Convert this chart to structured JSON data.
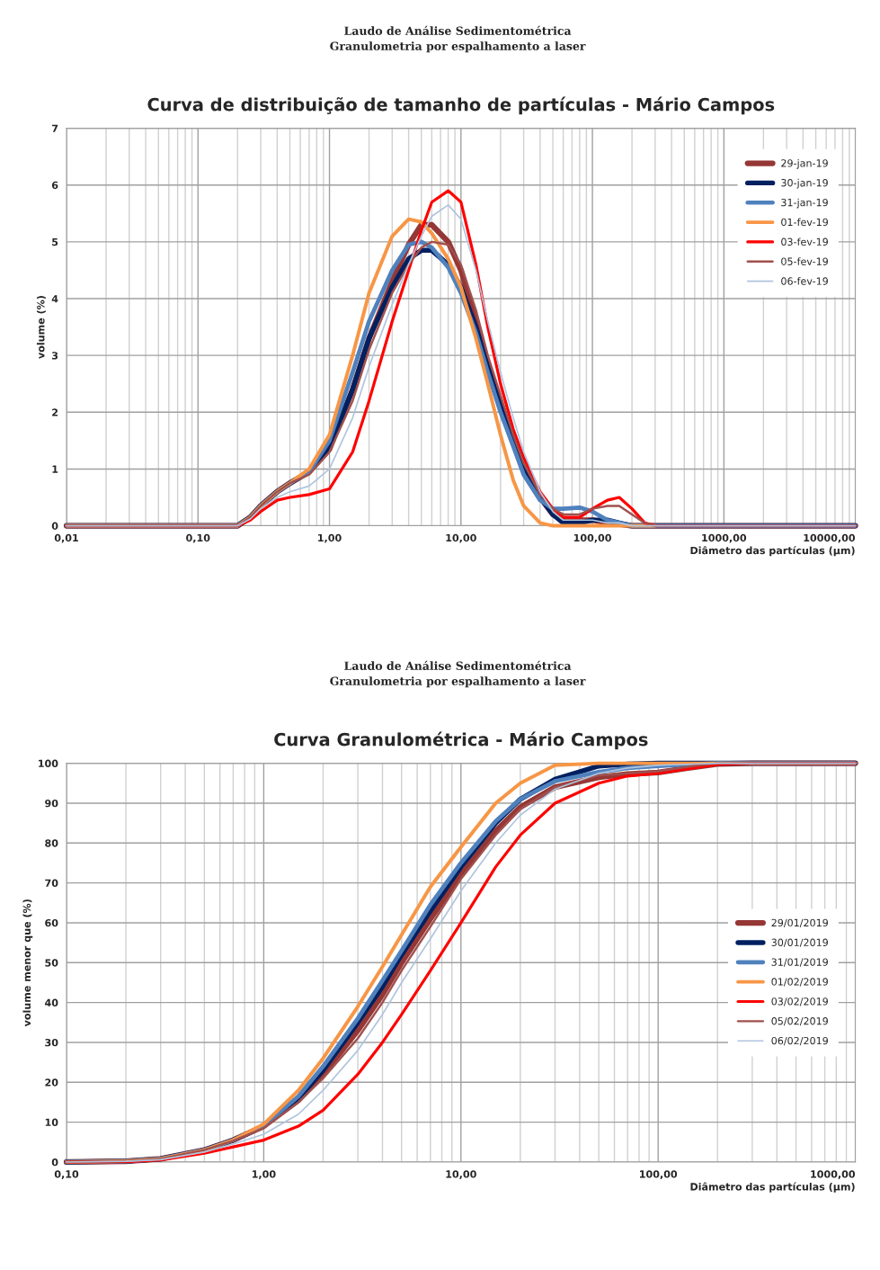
{
  "chart_data": [
    {
      "type": "line",
      "title": "Curva de distribuição de tamanho de partículas - Mário Campos",
      "annotations": [
        "Laudo de Análise Sedimentométrica",
        "Granulometria por espalhamento a laser"
      ],
      "xlabel": "Diâmetro das partículas (µm)",
      "ylabel": "volume (%)",
      "log": "x",
      "grid": true,
      "legend": "top right",
      "line_style": "solid",
      "marker": "none",
      "xlim": [
        0.01,
        10000
      ],
      "xticks": [
        {
          "value": 0.01,
          "label": "0,01"
        },
        {
          "value": 0.1,
          "label": "0,10"
        },
        {
          "value": 1,
          "label": "1,00"
        },
        {
          "value": 10,
          "label": "10,00"
        },
        {
          "value": 100,
          "label": "100,00"
        },
        {
          "value": 1000,
          "label": "1000,00"
        },
        {
          "value": 10000,
          "label": "10000,00"
        }
      ],
      "ylim": [
        0,
        7
      ],
      "yticks": [
        0,
        1,
        2,
        3,
        4,
        5,
        6,
        7
      ],
      "x": [
        0.01,
        0.1,
        0.2,
        0.25,
        0.3,
        0.4,
        0.5,
        0.7,
        1,
        1.5,
        2,
        3,
        4,
        5,
        6,
        8,
        10,
        13,
        16,
        20,
        25,
        30,
        40,
        50,
        60,
        80,
        100,
        130,
        160,
        200,
        250,
        300,
        1000,
        10000
      ],
      "series": [
        {
          "name": "29-jan-19",
          "color": "#953735",
          "values": [
            0,
            0,
            0,
            0.15,
            0.35,
            0.6,
            0.75,
            0.95,
            1.35,
            2.4,
            3.3,
            4.3,
            4.95,
            5.3,
            5.3,
            5.0,
            4.5,
            3.6,
            2.8,
            2.1,
            1.5,
            1.0,
            0.5,
            0.2,
            0.1,
            0.1,
            0.1,
            0.05,
            0.03,
            0,
            0,
            0,
            0,
            0
          ]
        },
        {
          "name": "30-jan-19",
          "color": "#002060",
          "values": [
            0,
            0,
            0,
            0.15,
            0.35,
            0.6,
            0.75,
            0.95,
            1.4,
            2.4,
            3.3,
            4.2,
            4.7,
            4.85,
            4.85,
            4.6,
            4.2,
            3.5,
            2.8,
            2.1,
            1.5,
            1.0,
            0.5,
            0.2,
            0.05,
            0.05,
            0.1,
            0.1,
            0.05,
            0,
            0,
            0,
            0,
            0
          ]
        },
        {
          "name": "31-jan-19",
          "color": "#4f81bd",
          "values": [
            0,
            0,
            0,
            0.15,
            0.35,
            0.6,
            0.75,
            0.95,
            1.5,
            2.7,
            3.6,
            4.5,
            4.95,
            5.0,
            4.9,
            4.55,
            4.1,
            3.4,
            2.7,
            2.0,
            1.4,
            0.9,
            0.45,
            0.3,
            0.3,
            0.32,
            0.25,
            0.1,
            0.05,
            0,
            0,
            0,
            0,
            0
          ]
        },
        {
          "name": "01-fev-19",
          "color": "#f79646",
          "values": [
            0,
            0,
            0,
            0.15,
            0.35,
            0.6,
            0.75,
            1.0,
            1.6,
            3.0,
            4.1,
            5.1,
            5.4,
            5.35,
            5.15,
            4.7,
            4.2,
            3.3,
            2.5,
            1.6,
            0.8,
            0.35,
            0.05,
            0,
            0,
            0,
            0,
            0,
            0,
            0,
            0,
            0,
            null,
            null
          ]
        },
        {
          "name": "03-fev-19",
          "color": "#ff0000",
          "values": [
            0,
            0,
            0,
            0.1,
            0.25,
            0.45,
            0.5,
            0.55,
            0.65,
            1.3,
            2.2,
            3.6,
            4.5,
            5.2,
            5.7,
            5.9,
            5.7,
            4.6,
            3.5,
            2.5,
            1.7,
            1.2,
            0.6,
            0.3,
            0.15,
            0.15,
            0.3,
            0.45,
            0.5,
            0.3,
            0.05,
            0,
            0,
            0
          ]
        },
        {
          "name": "05-fev-19",
          "color": "#a0504e",
          "values": [
            0,
            0,
            0,
            0.15,
            0.35,
            0.6,
            0.75,
            0.9,
            1.3,
            2.2,
            3.1,
            4.1,
            4.6,
            4.9,
            5.0,
            4.95,
            4.6,
            3.8,
            3.0,
            2.3,
            1.6,
            1.1,
            0.55,
            0.3,
            0.2,
            0.2,
            0.3,
            0.35,
            0.35,
            0.2,
            0.05,
            0,
            0,
            0
          ]
        },
        {
          "name": "06-fev-19",
          "color": "#b0c4de",
          "values": [
            0,
            0,
            0,
            0.12,
            0.3,
            0.5,
            0.6,
            0.7,
            1.0,
            1.9,
            2.8,
            3.9,
            4.6,
            5.1,
            5.45,
            5.65,
            5.4,
            4.5,
            3.6,
            2.7,
            1.9,
            1.3,
            0.6,
            0.25,
            0.1,
            0.1,
            0.1,
            0.05,
            0.05,
            0,
            0,
            0,
            0,
            0
          ]
        }
      ]
    },
    {
      "type": "line",
      "title": "Curva Granulométrica - Mário Campos",
      "annotations": [
        "Laudo de Análise Sedimentométrica",
        "Granulometria por espalhamento a laser"
      ],
      "xlabel": "Diâmetro das partículas (µm)",
      "ylabel": "volume menor que (%)",
      "log": "x",
      "grid": true,
      "legend": "right",
      "line_style": "solid",
      "marker": "none",
      "xlim": [
        0.1,
        1000
      ],
      "xticks": [
        {
          "value": 0.1,
          "label": "0,10"
        },
        {
          "value": 1,
          "label": "1,00"
        },
        {
          "value": 10,
          "label": "10,00"
        },
        {
          "value": 100,
          "label": "100,00"
        },
        {
          "value": 1000,
          "label": "1000,00"
        }
      ],
      "ylim": [
        0,
        100
      ],
      "yticks": [
        0,
        10,
        20,
        30,
        40,
        50,
        60,
        70,
        80,
        90,
        100
      ],
      "x": [
        0.1,
        0.2,
        0.3,
        0.5,
        0.7,
        1,
        1.5,
        2,
        3,
        4,
        5,
        7,
        10,
        15,
        20,
        30,
        50,
        70,
        100,
        150,
        200,
        300,
        1000
      ],
      "series": [
        {
          "name": "29/01/2019",
          "color": "#953735",
          "values": [
            0,
            0.2,
            0.8,
            3,
            5.5,
            9,
            15.5,
            22,
            33,
            42,
            50,
            61,
            72,
            83,
            89,
            94,
            96.5,
            97.3,
            97.7,
            99,
            99.8,
            100,
            100
          ]
        },
        {
          "name": "30/01/2019",
          "color": "#002060",
          "values": [
            0,
            0.2,
            0.8,
            3,
            5.5,
            9,
            16,
            23,
            35,
            44,
            52,
            63,
            74,
            85,
            91,
            96,
            99.3,
            99.8,
            100,
            100,
            100,
            100,
            100
          ]
        },
        {
          "name": "31/01/2019",
          "color": "#4f81bd",
          "values": [
            0,
            0.2,
            0.8,
            3,
            5.5,
            9,
            16.5,
            24,
            36,
            45.5,
            53,
            64.5,
            75,
            85.5,
            91,
            95.5,
            97.8,
            98.8,
            99.3,
            99.8,
            100,
            100,
            100
          ]
        },
        {
          "name": "01/02/2019",
          "color": "#f79646",
          "values": [
            0,
            0.2,
            0.8,
            3,
            5.5,
            9.5,
            18,
            26,
            39,
            49,
            57,
            69,
            79,
            90,
            95,
            99.5,
            100,
            100,
            100,
            100,
            100,
            100,
            100
          ]
        },
        {
          "name": "03/02/2019",
          "color": "#ff0000",
          "values": [
            0,
            0.1,
            0.5,
            2.2,
            3.8,
            5.5,
            9,
            13,
            22,
            30,
            37,
            48,
            60,
            74,
            82,
            90,
            95,
            96.8,
            97.5,
            98.8,
            99.7,
            100,
            100
          ]
        },
        {
          "name": "05/02/2019",
          "color": "#a0504e",
          "values": [
            0,
            0.2,
            0.8,
            3,
            5.3,
            8.5,
            15,
            21,
            31,
            40,
            48,
            59,
            71,
            82,
            88.5,
            94,
            97,
            97.5,
            98,
            99.3,
            100,
            100,
            100
          ]
        },
        {
          "name": "06/02/2019",
          "color": "#b0c4de",
          "values": [
            0,
            0.2,
            0.6,
            2.5,
            4.5,
            7,
            12,
            18,
            28,
            37,
            45,
            56,
            68,
            80,
            87,
            93.5,
            97.5,
            98.8,
            99.5,
            99.8,
            100,
            100,
            100
          ]
        }
      ]
    }
  ]
}
